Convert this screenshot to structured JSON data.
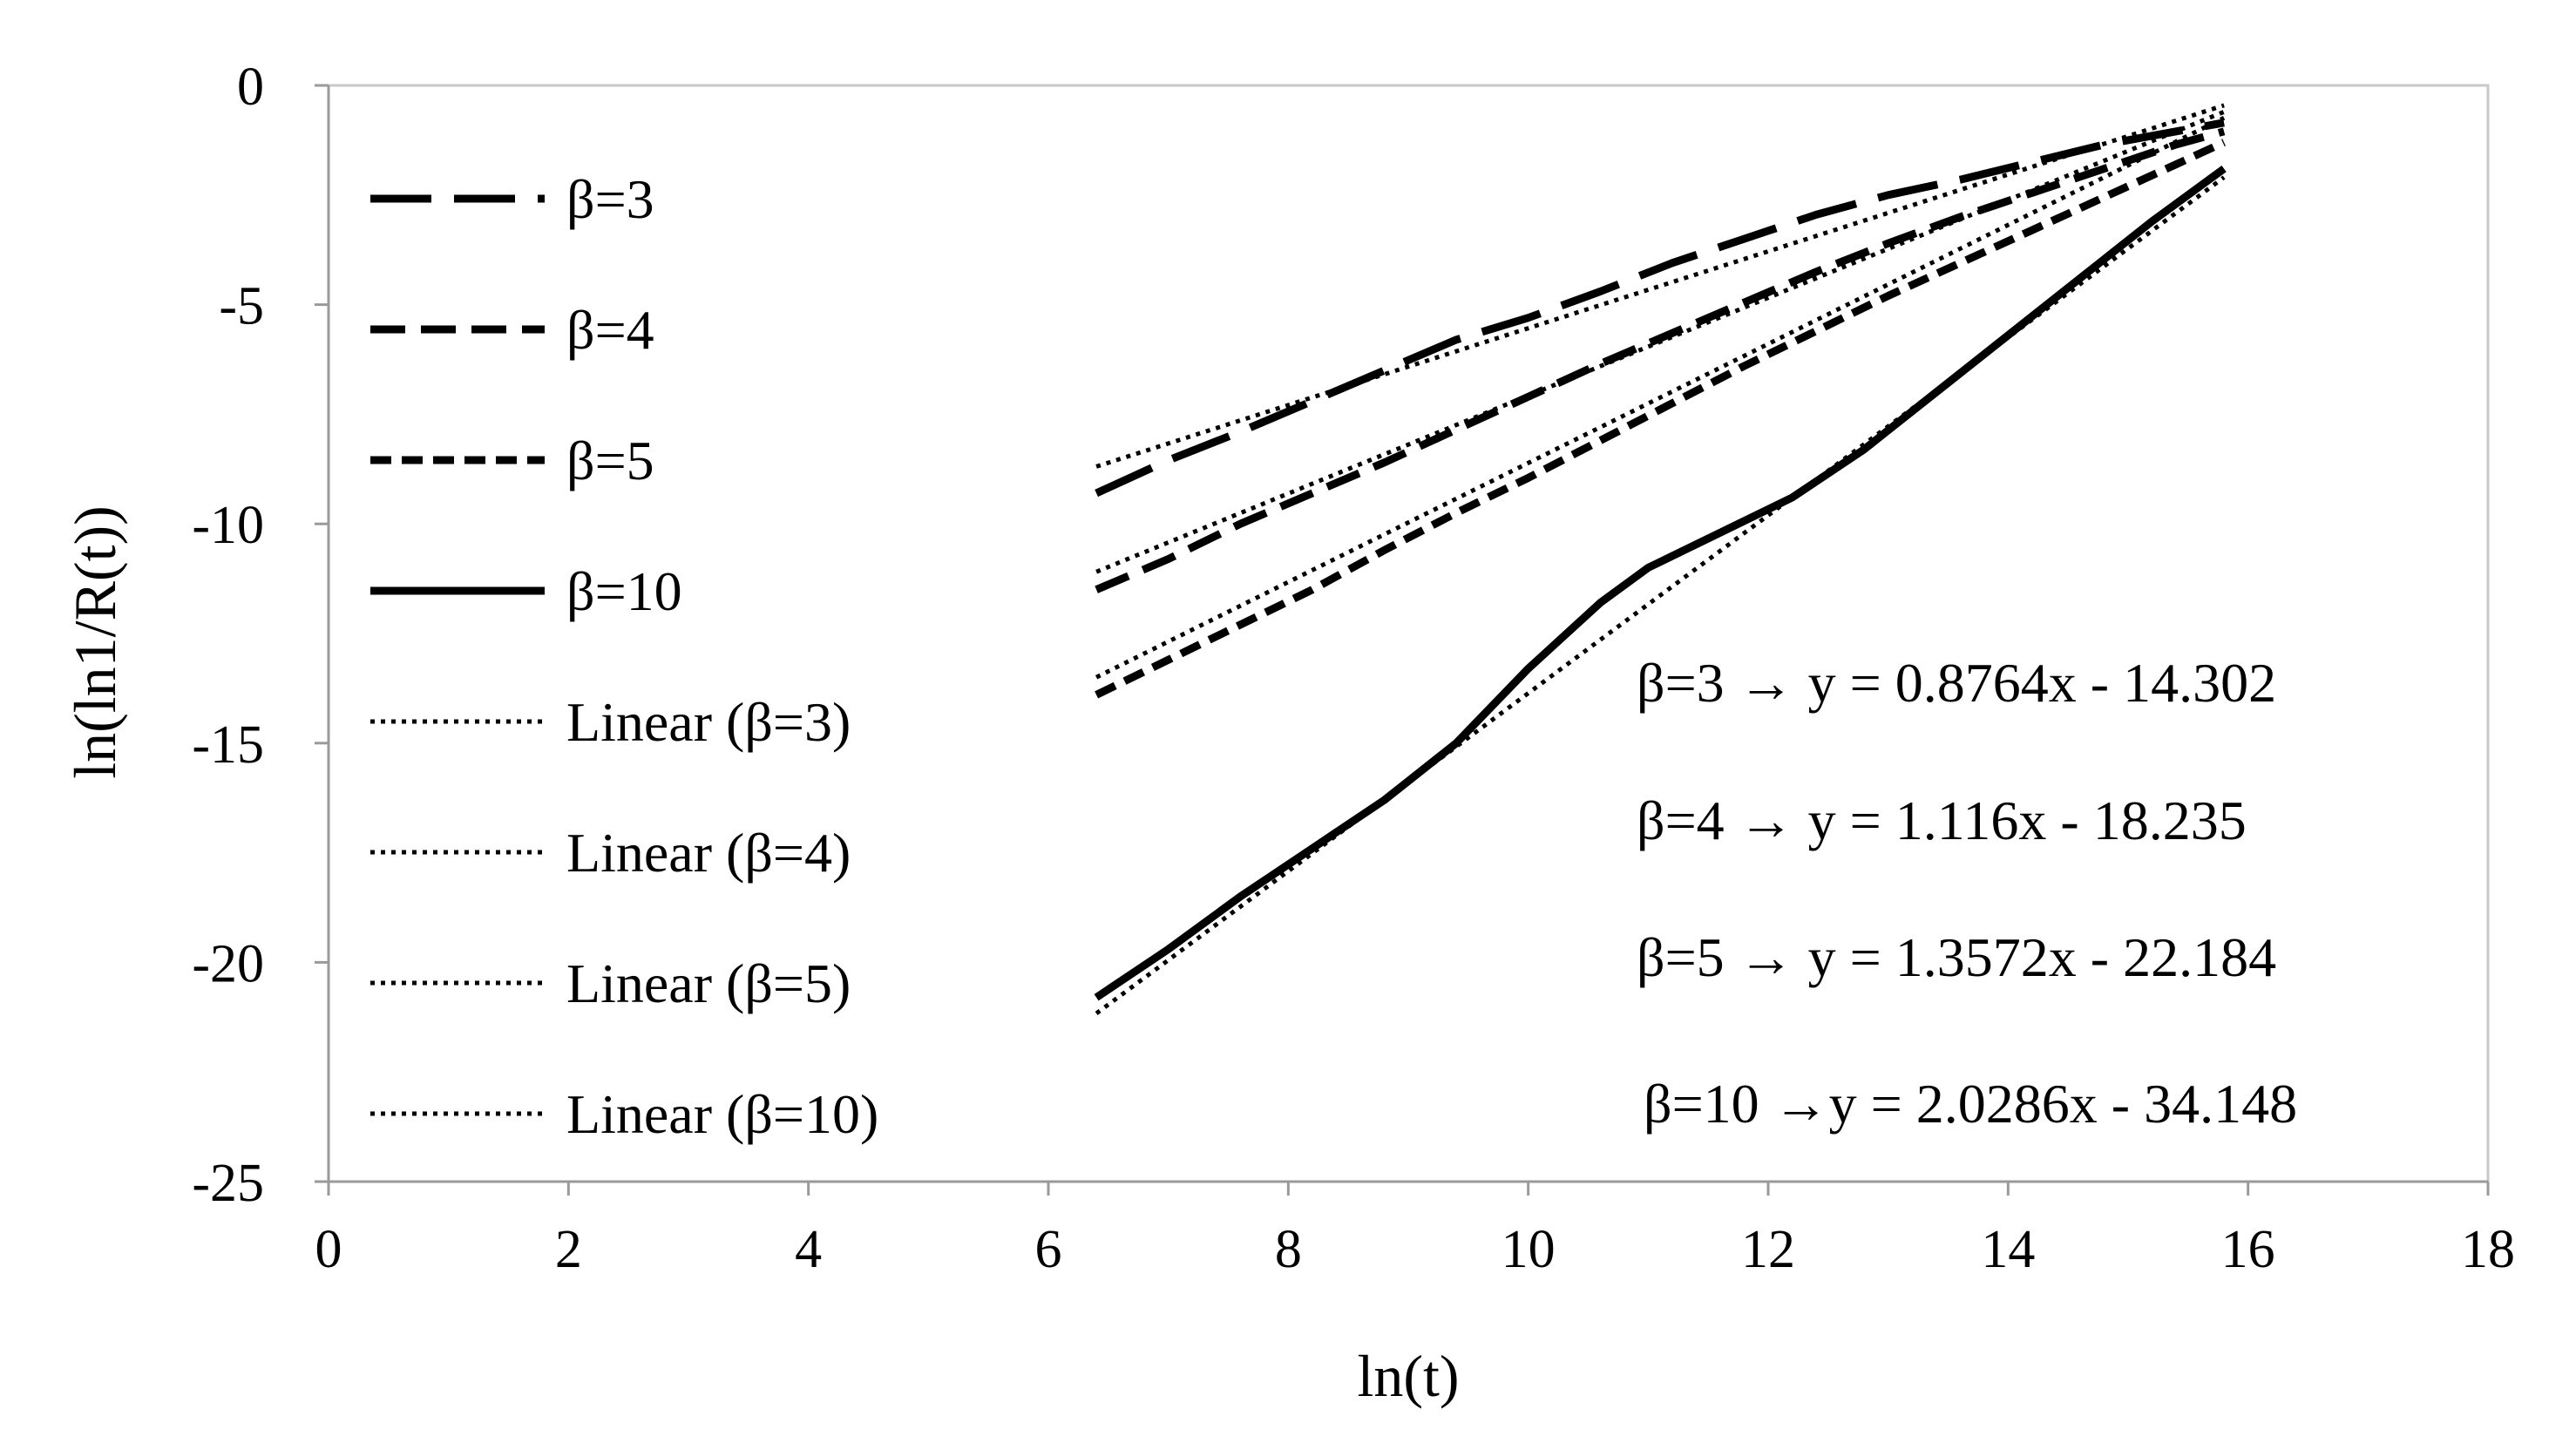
{
  "chart_data": {
    "type": "line",
    "xlabel": "ln(t)",
    "ylabel": "ln(ln1/R(t))",
    "xlim": [
      0,
      18
    ],
    "ylim": [
      -25,
      0
    ],
    "x_ticks": [
      "0",
      "2",
      "4",
      "6",
      "8",
      "10",
      "12",
      "14",
      "16",
      "18"
    ],
    "y_ticks": [
      "0",
      "-5",
      "-10",
      "-15",
      "-20",
      "-25"
    ],
    "grid": false,
    "legend_placement": "top-left",
    "series": [
      {
        "name": "β=3",
        "style": "long-dash",
        "x": [
          6.4,
          7.0,
          7.6,
          8.2,
          8.8,
          9.4,
          10.0,
          10.6,
          11.2,
          11.8,
          12.4,
          13.0,
          13.6,
          14.2,
          14.8,
          15.4,
          15.8
        ],
        "y": [
          -9.3,
          -8.55,
          -7.9,
          -7.2,
          -6.5,
          -5.8,
          -5.3,
          -4.7,
          -4.05,
          -3.5,
          -2.95,
          -2.5,
          -2.15,
          -1.75,
          -1.35,
          -1.05,
          -0.85
        ]
      },
      {
        "name": "β=4",
        "style": "dash",
        "x": [
          6.4,
          7.0,
          7.6,
          8.2,
          8.8,
          9.4,
          10.0,
          10.6,
          11.2,
          11.8,
          12.4,
          13.0,
          13.6,
          14.2,
          14.8,
          15.4,
          15.8
        ],
        "y": [
          -11.5,
          -10.8,
          -10.0,
          -9.3,
          -8.6,
          -7.85,
          -7.1,
          -6.35,
          -5.65,
          -4.95,
          -4.25,
          -3.6,
          -3.0,
          -2.45,
          -1.9,
          -1.35,
          -1.05
        ]
      },
      {
        "name": "β=5",
        "style": "short-dash",
        "x": [
          6.4,
          7.0,
          7.6,
          8.2,
          8.8,
          9.4,
          10.0,
          10.6,
          11.2,
          11.8,
          12.4,
          13.0,
          13.6,
          14.2,
          14.8,
          15.4,
          15.8
        ],
        "y": [
          -13.9,
          -13.1,
          -12.3,
          -11.5,
          -10.6,
          -9.75,
          -8.95,
          -8.1,
          -7.25,
          -6.4,
          -5.6,
          -4.8,
          -4.05,
          -3.3,
          -2.55,
          -1.8,
          -1.3
        ]
      },
      {
        "name": "β=10",
        "style": "solid",
        "x": [
          6.4,
          7.0,
          7.6,
          8.2,
          8.8,
          9.4,
          10.0,
          10.6,
          11.0,
          11.6,
          12.2,
          12.8,
          13.4,
          14.0,
          14.6,
          15.2,
          15.8
        ],
        "y": [
          -20.8,
          -19.7,
          -18.5,
          -17.4,
          -16.3,
          -15.0,
          -13.3,
          -11.8,
          -11.0,
          -10.2,
          -9.4,
          -8.3,
          -7.0,
          -5.7,
          -4.4,
          -3.1,
          -1.9
        ]
      },
      {
        "name": "Linear (β=3)",
        "style": "dotted",
        "x": [
          6.4,
          15.8
        ],
        "y": [
          -8.693,
          -0.455
        ]
      },
      {
        "name": "Linear (β=4)",
        "style": "dotted",
        "x": [
          6.4,
          15.8
        ],
        "y": [
          -11.093,
          -0.602
        ]
      },
      {
        "name": "Linear (β=5)",
        "style": "dotted",
        "x": [
          6.4,
          15.8
        ],
        "y": [
          -13.498,
          -0.74
        ]
      },
      {
        "name": "Linear (β=10)",
        "style": "dotted",
        "x": [
          6.4,
          15.8
        ],
        "y": [
          -21.165,
          -2.096
        ]
      }
    ],
    "annotations": [
      "β=3 → y = 0.8764x - 14.302",
      "β=4 → y = 1.116x - 18.235",
      "β=5 → y = 1.3572x - 22.184",
      "β=10 →y = 2.0286x - 34.148"
    ]
  }
}
